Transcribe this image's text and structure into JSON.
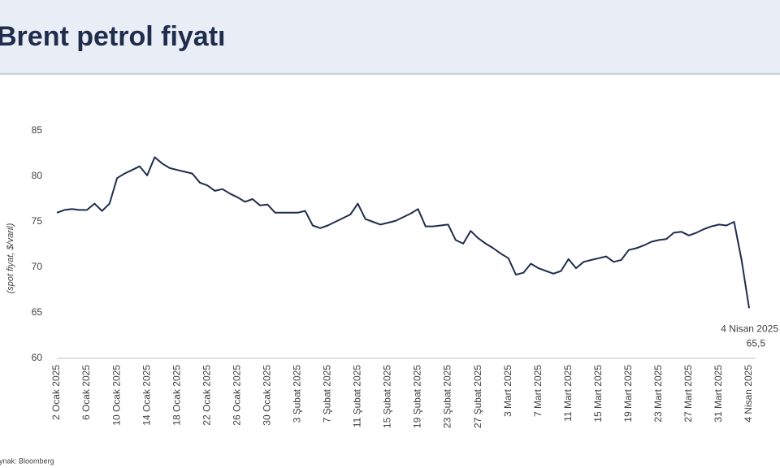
{
  "header": {
    "title": "Brent petrol fiyatı"
  },
  "chart_data": {
    "type": "line",
    "y_label": "(spot fiyat, $/varil)",
    "source": "Kaynak: Bloomberg",
    "categories": [
      "2 Ocak 2025",
      null,
      null,
      null,
      "6 Ocak 2025",
      null,
      null,
      null,
      "10 Ocak 2025",
      null,
      null,
      null,
      "14 Ocak 2025",
      null,
      null,
      null,
      "18 Ocak 2025",
      null,
      null,
      null,
      "22 Ocak 2025",
      null,
      null,
      null,
      "26 Ocak 2025",
      null,
      null,
      null,
      "30 Ocak 2025",
      null,
      null,
      null,
      "3 Şubat 2025",
      null,
      null,
      null,
      "7 Şubat 2025",
      null,
      null,
      null,
      "11 Şubat 2025",
      null,
      null,
      null,
      "15 Şubat 2025",
      null,
      null,
      null,
      "19 Şubat 2025",
      null,
      null,
      null,
      "23 Şubat 2025",
      null,
      null,
      null,
      "27 Şubat 2025",
      null,
      null,
      null,
      "3 Mart 2025",
      null,
      null,
      null,
      "7 Mart 2025",
      null,
      null,
      null,
      "11 Mart 2025",
      null,
      null,
      null,
      "15 Mart 2025",
      null,
      null,
      null,
      "19 Mart 2025",
      null,
      null,
      null,
      "23 Mart 2025",
      null,
      null,
      null,
      "27 Mart 2025",
      null,
      null,
      null,
      "31 Mart 2025",
      null,
      null,
      null,
      "4 Nisan 2025"
    ],
    "values": [
      76.0,
      76.3,
      76.4,
      76.3,
      76.3,
      77.0,
      76.2,
      77.0,
      79.8,
      80.3,
      80.7,
      81.1,
      80.1,
      82.1,
      81.4,
      80.9,
      80.7,
      80.5,
      80.3,
      79.3,
      79.0,
      78.4,
      78.6,
      78.1,
      77.7,
      77.2,
      77.5,
      76.8,
      76.9,
      76.0,
      76.0,
      76.0,
      76.0,
      76.2,
      74.6,
      74.3,
      74.6,
      75.0,
      75.4,
      75.8,
      77.0,
      75.3,
      75.0,
      74.7,
      74.9,
      75.1,
      75.5,
      75.9,
      76.4,
      74.5,
      74.5,
      74.6,
      74.7,
      73.0,
      72.6,
      74.0,
      73.2,
      72.6,
      72.1,
      71.5,
      71.0,
      69.2,
      69.4,
      70.4,
      69.9,
      69.6,
      69.3,
      69.6,
      70.9,
      69.9,
      70.6,
      70.8,
      71.0,
      71.2,
      70.6,
      70.8,
      71.9,
      72.1,
      72.4,
      72.8,
      73.0,
      73.1,
      73.8,
      73.9,
      73.5,
      73.8,
      74.2,
      74.5,
      74.7,
      74.6,
      75.0,
      70.8,
      65.5
    ],
    "value_labels": [
      null,
      null,
      null,
      null,
      null,
      null,
      null,
      null,
      null,
      null,
      null,
      null,
      null,
      null,
      null,
      null,
      null,
      null,
      null,
      null,
      null,
      null,
      null,
      null,
      null,
      null,
      null,
      null,
      null,
      null,
      null,
      null,
      null,
      null,
      null,
      null,
      null,
      null,
      null,
      null,
      null,
      null,
      null,
      null,
      null,
      null,
      null,
      null,
      null,
      null,
      null,
      null,
      null,
      null,
      null,
      null,
      null,
      null,
      null,
      null,
      null,
      null,
      null,
      null,
      null,
      null,
      null,
      null,
      null,
      null,
      null,
      null,
      null,
      null,
      null,
      null,
      null,
      null,
      null,
      null,
      null,
      null,
      null,
      null,
      null,
      null,
      null,
      null,
      null,
      null,
      null,
      null,
      "65,5"
    ],
    "color": "#1f2d4d",
    "ylim": [
      60,
      85
    ],
    "yticks": [
      60,
      65,
      70,
      75,
      80,
      85
    ],
    "grid": false
  }
}
